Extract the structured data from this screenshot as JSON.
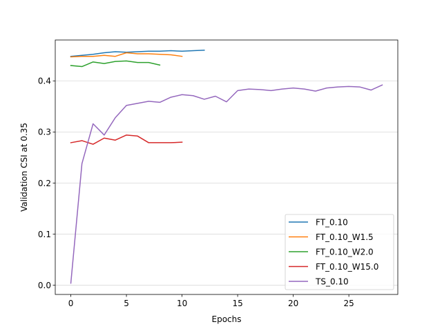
{
  "chart_data": {
    "type": "line",
    "title": "",
    "xlabel": "Epochs",
    "ylabel": "Validation CSI at 0.35",
    "xlim": [
      -1.4,
      29.4
    ],
    "ylim": [
      -0.018,
      0.48
    ],
    "xticks": [
      0,
      5,
      10,
      15,
      20,
      25
    ],
    "yticks": [
      0.0,
      0.1,
      0.2,
      0.3,
      0.4
    ],
    "ytick_labels": [
      "0.0",
      "0.1",
      "0.2",
      "0.3",
      "0.4"
    ],
    "grid": "horizontal",
    "legend_position": "lower-right",
    "series": [
      {
        "name": "FT_0.10",
        "color": "#1f77b4",
        "x": [
          0,
          1,
          2,
          3,
          4,
          5,
          6,
          7,
          8,
          9,
          10,
          11,
          12
        ],
        "values": [
          0.448,
          0.45,
          0.452,
          0.455,
          0.457,
          0.456,
          0.457,
          0.458,
          0.458,
          0.459,
          0.458,
          0.459,
          0.46
        ]
      },
      {
        "name": "FT_0.10_W1.5",
        "color": "#ff7f0e",
        "x": [
          0,
          1,
          2,
          3,
          4,
          5,
          6,
          7,
          8,
          9,
          10
        ],
        "values": [
          0.447,
          0.448,
          0.448,
          0.45,
          0.448,
          0.455,
          0.453,
          0.453,
          0.452,
          0.451,
          0.448
        ]
      },
      {
        "name": "FT_0.10_W2.0",
        "color": "#2ca02c",
        "x": [
          0,
          1,
          2,
          3,
          4,
          5,
          6,
          7,
          8
        ],
        "values": [
          0.43,
          0.428,
          0.437,
          0.434,
          0.438,
          0.439,
          0.436,
          0.436,
          0.431
        ]
      },
      {
        "name": "FT_0.10_W15.0",
        "color": "#d62728",
        "x": [
          0,
          1,
          2,
          3,
          4,
          5,
          6,
          7,
          8,
          9,
          10
        ],
        "values": [
          0.279,
          0.283,
          0.276,
          0.288,
          0.284,
          0.294,
          0.292,
          0.279,
          0.279,
          0.279,
          0.28
        ]
      },
      {
        "name": "TS_0.10",
        "color": "#9467bd",
        "x": [
          0,
          1,
          2,
          3,
          4,
          5,
          6,
          7,
          8,
          9,
          10,
          11,
          12,
          13,
          14,
          15,
          16,
          17,
          18,
          19,
          20,
          21,
          22,
          23,
          24,
          25,
          26,
          27,
          28
        ],
        "values": [
          0.004,
          0.238,
          0.316,
          0.294,
          0.328,
          0.352,
          0.356,
          0.36,
          0.358,
          0.368,
          0.373,
          0.371,
          0.364,
          0.37,
          0.359,
          0.381,
          0.384,
          0.383,
          0.381,
          0.384,
          0.386,
          0.384,
          0.38,
          0.386,
          0.388,
          0.389,
          0.388,
          0.382,
          0.392
        ]
      }
    ]
  }
}
